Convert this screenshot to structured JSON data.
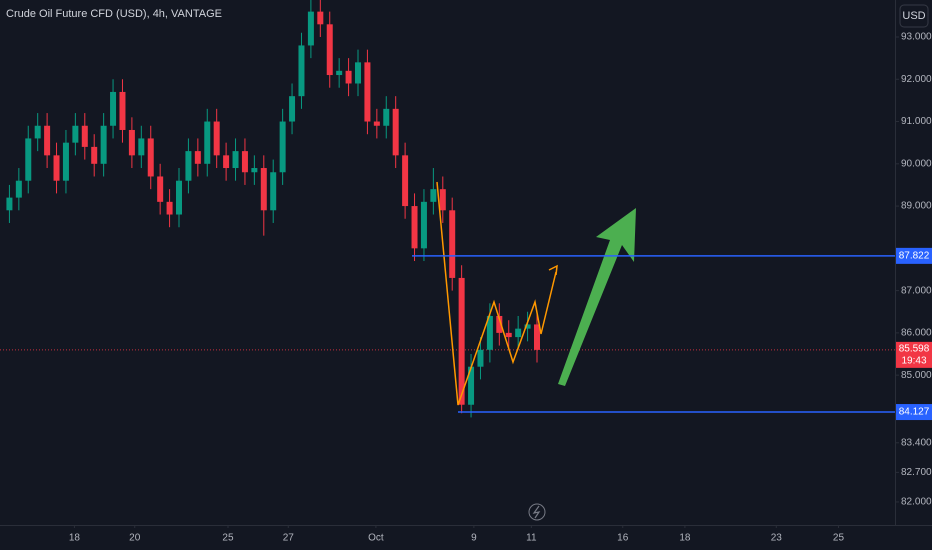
{
  "chart_data": {
    "type": "candlestick",
    "title": "Crude Oil Future CFD (USD), 4h, VANTAGE",
    "currency_button": "USD",
    "up_color": "#089981",
    "down_color": "#f23645",
    "level_color": "#2962ff",
    "open": [
      88.9,
      89.2,
      89.6,
      90.6,
      90.9,
      90.2,
      89.6,
      90.5,
      90.9,
      90.4,
      90.0,
      90.9,
      91.7,
      90.8,
      90.2,
      90.6,
      89.7,
      89.1,
      88.8,
      89.6,
      90.3,
      90.0,
      91.0,
      90.2,
      89.9,
      90.3,
      89.8,
      89.9,
      88.9,
      89.8,
      91.0,
      91.6,
      92.8,
      93.6,
      93.3,
      92.1,
      92.2,
      91.9,
      92.4,
      91.0,
      90.9,
      91.3,
      90.2,
      89.0,
      88.0,
      89.1,
      89.4,
      88.9,
      87.3,
      84.3,
      85.2,
      85.6,
      86.4,
      86.0,
      85.9,
      86.1,
      86.2
    ],
    "high": [
      89.5,
      89.9,
      90.9,
      91.2,
      91.2,
      90.5,
      90.8,
      91.2,
      91.2,
      90.7,
      91.2,
      92.0,
      92.0,
      91.1,
      90.9,
      90.9,
      90.0,
      89.4,
      89.9,
      90.6,
      90.6,
      91.3,
      91.3,
      90.5,
      90.6,
      90.6,
      90.2,
      90.2,
      90.1,
      91.3,
      91.9,
      93.1,
      93.9,
      93.9,
      93.6,
      92.5,
      92.5,
      92.7,
      92.7,
      91.3,
      91.6,
      91.6,
      90.5,
      89.3,
      89.4,
      89.9,
      89.7,
      89.2,
      87.6,
      85.5,
      85.9,
      86.7,
      86.7,
      86.3,
      86.4,
      86.5,
      86.5
    ],
    "low": [
      88.6,
      88.9,
      89.3,
      90.3,
      89.9,
      89.3,
      89.3,
      90.2,
      90.1,
      89.7,
      89.7,
      90.6,
      90.5,
      89.9,
      89.9,
      89.4,
      88.8,
      88.5,
      88.5,
      89.3,
      89.7,
      89.7,
      89.9,
      89.6,
      89.6,
      89.5,
      89.5,
      88.3,
      88.6,
      89.5,
      90.7,
      91.3,
      92.5,
      93.0,
      91.8,
      91.8,
      91.6,
      91.6,
      90.7,
      90.6,
      90.6,
      89.9,
      88.7,
      87.7,
      87.7,
      88.8,
      88.6,
      87.0,
      84.1,
      84.0,
      84.9,
      85.3,
      85.7,
      85.6,
      85.6,
      85.8,
      85.3
    ],
    "close": [
      89.2,
      89.6,
      90.6,
      90.9,
      90.2,
      89.6,
      90.5,
      90.9,
      90.4,
      90.0,
      90.9,
      91.7,
      90.8,
      90.2,
      90.6,
      89.7,
      89.1,
      88.8,
      89.6,
      90.3,
      90.0,
      91.0,
      90.2,
      89.9,
      90.3,
      89.8,
      89.9,
      88.9,
      89.8,
      91.0,
      91.6,
      92.8,
      93.6,
      93.3,
      92.1,
      92.2,
      91.9,
      92.4,
      91.0,
      90.9,
      91.3,
      90.2,
      89.0,
      88.0,
      89.1,
      89.4,
      88.9,
      87.3,
      84.3,
      85.2,
      85.6,
      86.4,
      86.0,
      85.9,
      86.1,
      86.2,
      85.598
    ],
    "xlim": [
      -1,
      94
    ],
    "xticks": [
      {
        "value": 6.9,
        "label": "18"
      },
      {
        "value": 13.3,
        "label": "20"
      },
      {
        "value": 23.2,
        "label": "25"
      },
      {
        "value": 29.6,
        "label": "27"
      },
      {
        "value": 38.9,
        "label": "Oct"
      },
      {
        "value": 49.3,
        "label": "9"
      },
      {
        "value": 55.4,
        "label": "11"
      },
      {
        "value": 65.1,
        "label": "16"
      },
      {
        "value": 71.7,
        "label": "18"
      },
      {
        "value": 81.4,
        "label": "23"
      },
      {
        "value": 88.0,
        "label": "25"
      }
    ],
    "ylim": [
      81.455,
      93.875
    ],
    "yticks": [
      {
        "value": 93,
        "label": "93.000"
      },
      {
        "value": 92,
        "label": "92.000"
      },
      {
        "value": 91,
        "label": "91.000"
      },
      {
        "value": 90,
        "label": "90.000"
      },
      {
        "value": 89,
        "label": "89.000"
      },
      {
        "value": 87,
        "label": "87.000"
      },
      {
        "value": 86,
        "label": "86.000"
      },
      {
        "value": 85,
        "label": "85.000"
      },
      {
        "value": 83.4,
        "label": "83.400"
      },
      {
        "value": 82.7,
        "label": "82.700"
      },
      {
        "value": 82,
        "label": "82.000"
      }
    ],
    "horizontal_lines": [
      87.822,
      84.127
    ],
    "last_price": 85.598,
    "countdown": "19:43"
  }
}
